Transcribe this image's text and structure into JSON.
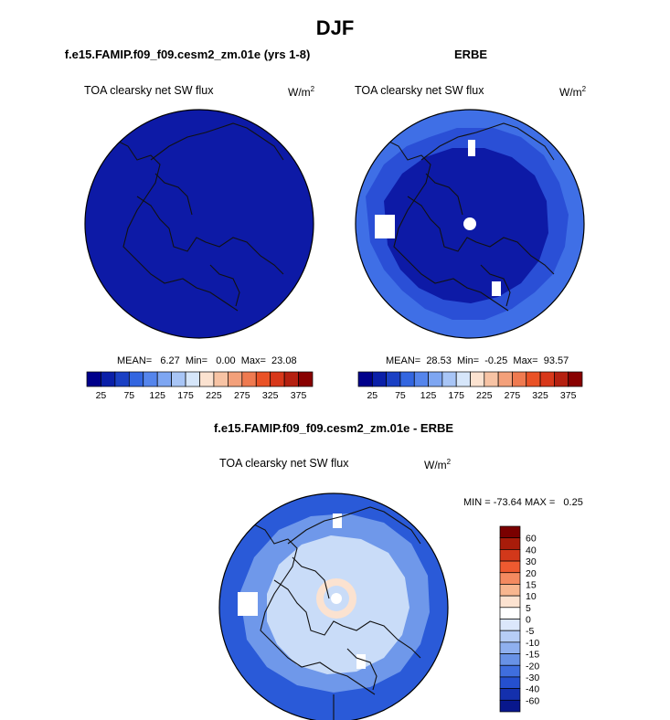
{
  "title": "DJF",
  "panels": {
    "model": {
      "title": "f.e15.FAMIP.f09_f09.cesm2_zm.01e (yrs 1-8)",
      "field": "TOA clearsky net SW flux",
      "units_base": "W/m",
      "units_exp": "2",
      "stats": "MEAN=   6.27  Min=   0.00  Max=  23.08"
    },
    "obs": {
      "title": "ERBE",
      "field": "TOA clearsky net SW flux",
      "units_base": "W/m",
      "units_exp": "2",
      "stats": "MEAN=  28.53  Min=  -0.25  Max=  93.57"
    },
    "diff": {
      "title": "f.e15.FAMIP.f09_f09.cesm2_zm.01e - ERBE",
      "field": "TOA clearsky net SW flux",
      "units_base": "W/m",
      "units_exp": "2",
      "minmax": "MIN = -73.64 MAX =   0.25"
    }
  },
  "colorbar_main": {
    "colors": [
      "#00008b",
      "#0a1fa8",
      "#1a40c4",
      "#3366e0",
      "#5585ec",
      "#7ea6f2",
      "#a8c5f6",
      "#d6e6fa",
      "#fbe2d0",
      "#f7c3a4",
      "#f3a07a",
      "#ef7a50",
      "#ea5226",
      "#d8381a",
      "#b52010",
      "#880000"
    ],
    "tick_labels": [
      "25",
      "75",
      "125",
      "175",
      "225",
      "275",
      "325",
      "375"
    ]
  },
  "colorbar_diff": {
    "colors": [
      "#7a0000",
      "#a81c0a",
      "#d2381a",
      "#ee5a30",
      "#f48a60",
      "#f8b68f",
      "#fce2d0",
      "#ffffff",
      "#dbe7fb",
      "#b6cdf6",
      "#8fb0ef",
      "#6892e6",
      "#3f6ede",
      "#2550cf",
      "#1430ad",
      "#08178c"
    ],
    "tick_labels": [
      "60",
      "40",
      "30",
      "20",
      "15",
      "10",
      "5",
      "0",
      "-5",
      "-10",
      "-15",
      "-20",
      "-30",
      "-40",
      "-60"
    ]
  },
  "colors": {
    "model_fill": "#0d1aa6",
    "obs_inner": "#0d1aa6",
    "obs_mid": "#2a4fd6",
    "obs_outer": "#3f6fe6",
    "diff_inner": "#c9dcf8",
    "diff_mid": "#6f98ea",
    "diff_outer": "#2a5ad8",
    "coast": "#111111"
  },
  "chart_data": [
    {
      "type": "heatmap",
      "title": "f.e15.FAMIP.f09_f09.cesm2_zm.01e (yrs 1-8)",
      "subtitle": "TOA clearsky net SW flux",
      "units": "W/m2",
      "projection": "north polar stereographic",
      "stats": {
        "mean": 6.27,
        "min": 0.0,
        "max": 23.08
      },
      "levels": [
        25,
        50,
        75,
        100,
        125,
        150,
        175,
        200,
        225,
        250,
        275,
        300,
        325,
        350,
        375
      ]
    },
    {
      "type": "heatmap",
      "title": "ERBE",
      "subtitle": "TOA clearsky net SW flux",
      "units": "W/m2",
      "projection": "north polar stereographic",
      "stats": {
        "mean": 28.53,
        "min": -0.25,
        "max": 93.57
      },
      "levels": [
        25,
        50,
        75,
        100,
        125,
        150,
        175,
        200,
        225,
        250,
        275,
        300,
        325,
        350,
        375
      ]
    },
    {
      "type": "heatmap",
      "title": "f.e15.FAMIP.f09_f09.cesm2_zm.01e - ERBE",
      "subtitle": "TOA clearsky net SW flux",
      "units": "W/m2",
      "projection": "north polar stereographic",
      "stats": {
        "min": -73.64,
        "max": 0.25
      },
      "levels": [
        -60,
        -40,
        -30,
        -20,
        -15,
        -10,
        -5,
        0,
        5,
        10,
        15,
        20,
        30,
        40,
        60
      ]
    }
  ]
}
